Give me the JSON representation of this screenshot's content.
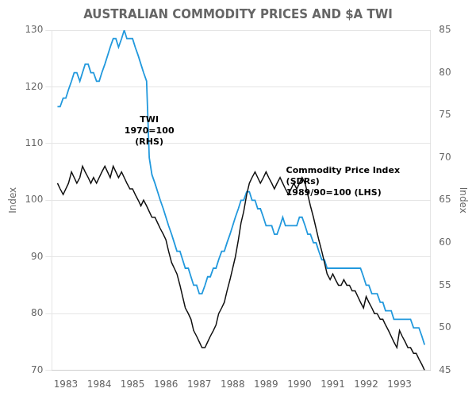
{
  "chart_data": {
    "type": "line",
    "title": "AUSTRALIAN COMMODITY PRICES AND $A TWI",
    "ylabel": "Index",
    "y2label": "Index",
    "x": [
      1982.75,
      1982.83,
      1982.92,
      1983.0,
      1983.08,
      1983.17,
      1983.25,
      1983.33,
      1983.42,
      1983.5,
      1983.58,
      1983.67,
      1983.75,
      1983.83,
      1983.92,
      1984.0,
      1984.08,
      1984.17,
      1984.25,
      1984.33,
      1984.42,
      1984.5,
      1984.58,
      1984.67,
      1984.75,
      1984.83,
      1984.92,
      1985.0,
      1985.08,
      1985.17,
      1985.25,
      1985.33,
      1985.42,
      1985.5,
      1985.58,
      1985.67,
      1985.75,
      1985.83,
      1985.92,
      1986.0,
      1986.08,
      1986.17,
      1986.25,
      1986.33,
      1986.42,
      1986.5,
      1986.58,
      1986.67,
      1986.75,
      1986.83,
      1986.92,
      1987.0,
      1987.08,
      1987.17,
      1987.25,
      1987.33,
      1987.42,
      1987.5,
      1987.58,
      1987.67,
      1987.75,
      1987.83,
      1987.92,
      1988.0,
      1988.08,
      1988.17,
      1988.25,
      1988.33,
      1988.42,
      1988.5,
      1988.58,
      1988.67,
      1988.75,
      1988.83,
      1988.92,
      1989.0,
      1989.08,
      1989.17,
      1989.25,
      1989.33,
      1989.42,
      1989.5,
      1989.58,
      1989.67,
      1989.75,
      1989.83,
      1989.92,
      1990.0,
      1990.08,
      1990.17,
      1990.25,
      1990.33,
      1990.42,
      1990.5,
      1990.58,
      1990.67,
      1990.75,
      1990.83,
      1990.92,
      1991.0,
      1991.08,
      1991.17,
      1991.25,
      1991.33,
      1991.42,
      1991.5,
      1991.58,
      1991.67,
      1991.75,
      1991.83,
      1991.92,
      1992.0,
      1992.08,
      1992.17,
      1992.25,
      1992.33,
      1992.42,
      1992.5,
      1992.58,
      1992.67,
      1992.75,
      1992.83,
      1992.92,
      1993.0,
      1993.08,
      1993.17,
      1993.25,
      1993.33,
      1993.42,
      1993.5,
      1993.58,
      1993.67,
      1993.75
    ],
    "xlim": [
      1982.58,
      1993.92
    ],
    "xticks": [
      1983,
      1984,
      1985,
      1986,
      1987,
      1988,
      1989,
      1990,
      1991,
      1992,
      1993
    ],
    "ylim": [
      70,
      130
    ],
    "yticks": [
      70,
      80,
      90,
      100,
      110,
      120,
      130
    ],
    "y2lim": [
      45,
      85
    ],
    "y2ticks": [
      45,
      50,
      55,
      60,
      65,
      70,
      75,
      80,
      85
    ],
    "grid": "y",
    "series": [
      {
        "color": "#111111",
        "values": [
          103,
          102,
          101,
          102,
          103,
          105,
          104,
          103,
          104,
          106,
          105,
          104,
          103,
          104,
          103,
          104,
          105,
          106,
          105,
          104,
          106,
          105,
          104,
          105,
          104,
          103,
          102,
          102,
          101,
          100,
          99,
          100,
          99,
          98,
          97,
          97,
          96,
          95,
          94,
          93,
          91,
          89,
          88,
          87,
          85,
          83,
          81,
          80,
          79,
          77,
          76,
          75,
          74,
          74,
          75,
          76,
          77,
          78,
          80,
          81,
          82,
          84,
          86,
          88,
          90,
          93,
          96,
          98,
          101,
          103,
          104,
          105,
          104,
          103,
          104,
          105,
          104,
          103,
          102,
          103,
          104,
          103,
          102,
          101,
          102,
          103,
          102,
          103,
          104,
          103,
          101,
          99,
          97,
          95,
          93,
          91,
          89,
          87,
          86,
          87,
          86,
          85,
          85,
          86,
          85,
          85,
          84,
          84,
          83,
          82,
          81,
          83,
          82,
          81,
          80,
          80,
          79,
          79,
          78,
          77,
          76,
          75,
          74,
          77,
          76,
          75,
          74,
          74,
          73,
          73,
          72,
          71,
          70
        ]
      },
      {
        "color": "#2299dd",
        "axis": "y2",
        "values": [
          76,
          76,
          77,
          77,
          78,
          79,
          80,
          80,
          79,
          80,
          81,
          81,
          80,
          80,
          79,
          79,
          80,
          81,
          82,
          83,
          84,
          84,
          83,
          84,
          85,
          84,
          84,
          84,
          83,
          82,
          81,
          80,
          79,
          70,
          68,
          67,
          66,
          65,
          64,
          63,
          62,
          61,
          60,
          59,
          59,
          58,
          57,
          57,
          56,
          55,
          55,
          54,
          54,
          55,
          56,
          56,
          57,
          57,
          58,
          59,
          59,
          60,
          61,
          62,
          63,
          64,
          65,
          65,
          66,
          66,
          65,
          65,
          64,
          64,
          63,
          62,
          62,
          62,
          61,
          61,
          62,
          63,
          62,
          62,
          62,
          62,
          62,
          63,
          63,
          62,
          61,
          61,
          60,
          60,
          59,
          58,
          58,
          57,
          57,
          57,
          57,
          57,
          57,
          57,
          57,
          57,
          57,
          57,
          57,
          57,
          56,
          55,
          55,
          54,
          54,
          54,
          53,
          53,
          52,
          52,
          52,
          51,
          51,
          51,
          51,
          51,
          51,
          51,
          50,
          50,
          50,
          49,
          48
        ]
      }
    ],
    "annotations": [
      {
        "text": "TWI\n1970=100\n(RHS)",
        "x": 1985.5,
        "y": 115
      },
      {
        "text": "Commodity Price Index\n(SDRs)\n1989/90=100 (LHS)",
        "x": 1989.6,
        "y": 106
      }
    ]
  }
}
